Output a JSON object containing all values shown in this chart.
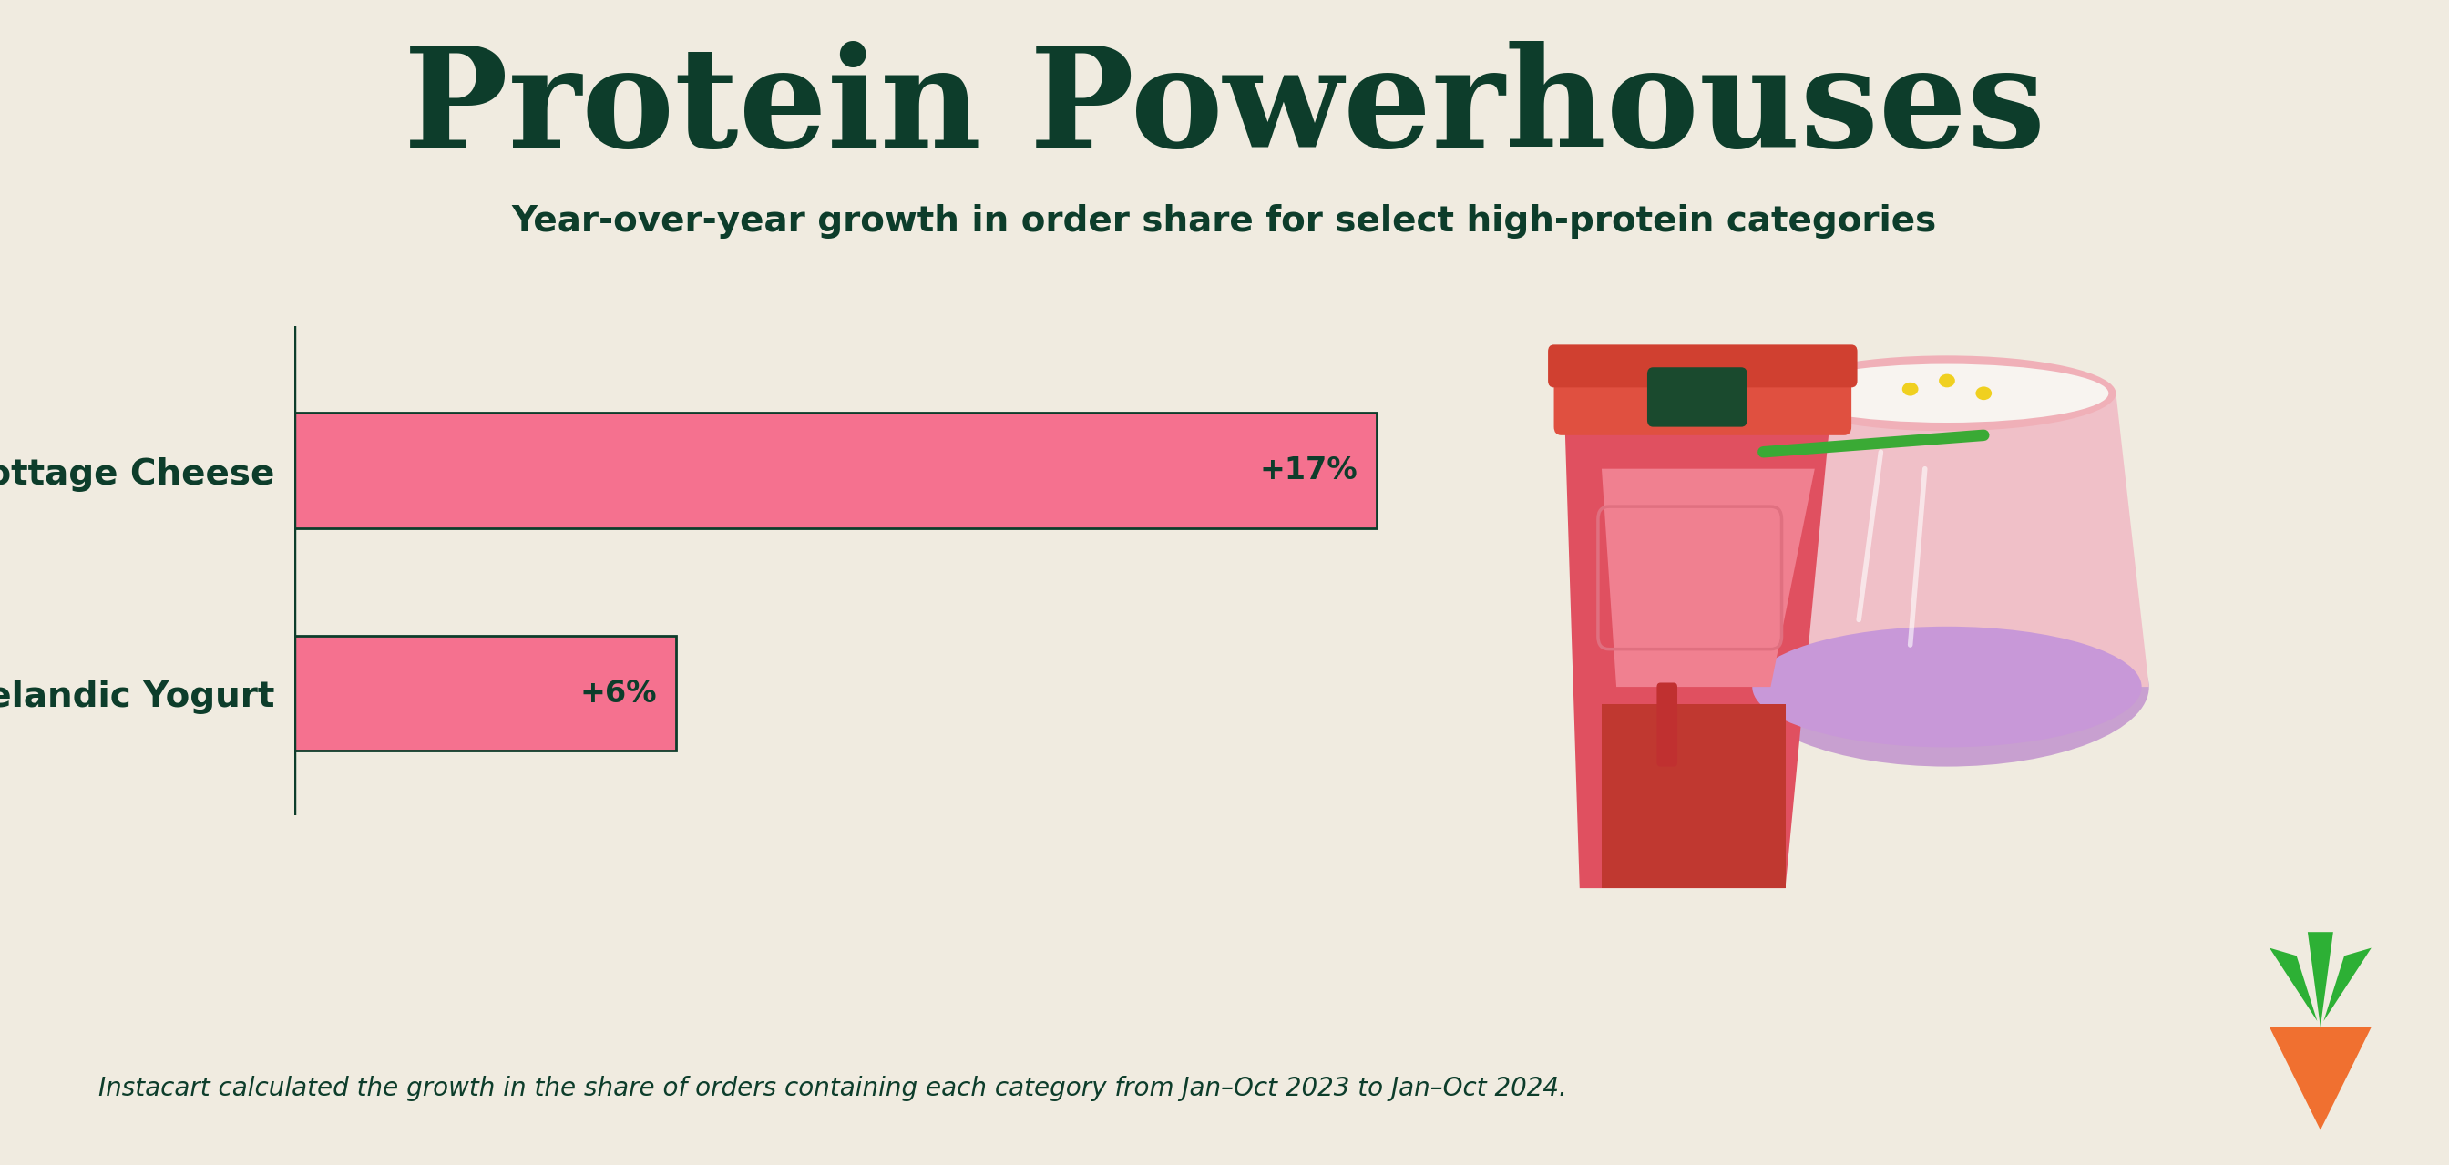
{
  "title": "Protein Powerhouses",
  "subtitle": "Year-over-year growth in order share for select high-protein categories",
  "footnote": "Instacart calculated the growth in the share of orders containing each category from Jan–Oct 2023 to Jan–Oct 2024.",
  "background_color": "#f0ebe0",
  "title_color": "#0d3d2b",
  "subtitle_color": "#0d3d2b",
  "footnote_color": "#0d3d2b",
  "bar_color": "#f5718f",
  "bar_border_color": "#0d3d2b",
  "label_color": "#0d3d2b",
  "value_color": "#0d3d2b",
  "categories": [
    "Cottage Cheese",
    "Greek/Icelandic Yogurt"
  ],
  "values": [
    17,
    6
  ],
  "max_val": 20,
  "labels": [
    "+17%",
    "+6%"
  ],
  "bar_height": 0.52,
  "ylabel_fontsize": 28,
  "value_fontsize": 24,
  "title_fontsize": 110,
  "subtitle_fontsize": 28,
  "footnote_fontsize": 20,
  "carrot_green": "#2db035",
  "carrot_orange": "#f07030",
  "cup_pink": "#f07070",
  "cup_red": "#d94040",
  "cup_dark_red": "#8b2020",
  "cup_lid_red": "#e05050",
  "cup_green_accent": "#1a4a2e",
  "cup_green_stripe": "#3aaa35",
  "bowl_pink": "#f0b0b8",
  "bowl_light": "#e8c0c8",
  "bowl_purple": "#c8a0d8",
  "bowl_content": "#f8f4f0",
  "spoon_color": "#8b1a2b",
  "yellow_dots": "#f0d020"
}
